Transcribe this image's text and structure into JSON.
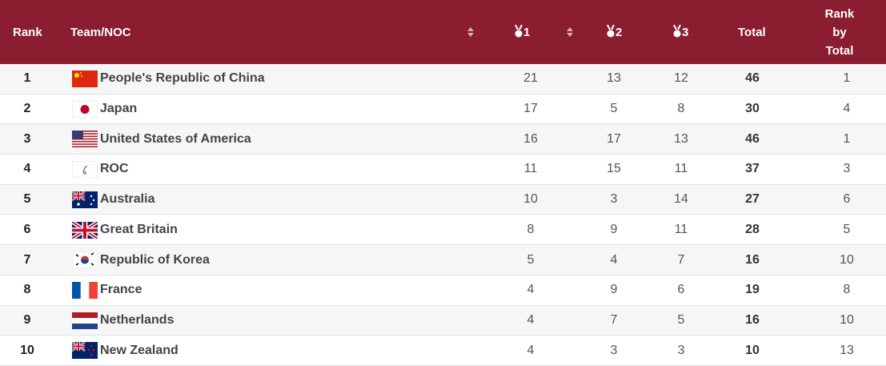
{
  "table": {
    "header": {
      "rank": "Rank",
      "team": "Team/NOC",
      "gold": "1",
      "silver": "2",
      "bronze": "3",
      "total": "Total",
      "rank_by_total": "Rank by Total"
    },
    "rows": [
      [
        1,
        "People's Republic of China",
        21,
        13,
        12,
        46,
        1
      ],
      [
        2,
        "Japan",
        17,
        5,
        8,
        30,
        4
      ],
      [
        3,
        "United States of America",
        16,
        17,
        13,
        46,
        1
      ],
      [
        4,
        "ROC",
        11,
        15,
        11,
        37,
        3
      ],
      [
        5,
        "Australia",
        10,
        3,
        14,
        27,
        6
      ],
      [
        6,
        "Great Britain",
        8,
        9,
        11,
        28,
        5
      ],
      [
        7,
        "Republic of Korea",
        5,
        4,
        7,
        16,
        10
      ],
      [
        8,
        "France",
        4,
        9,
        6,
        19,
        8
      ],
      [
        9,
        "Netherlands",
        4,
        7,
        5,
        16,
        10
      ],
      [
        10,
        "New Zealand",
        4,
        3,
        3,
        10,
        13
      ]
    ]
  }
}
